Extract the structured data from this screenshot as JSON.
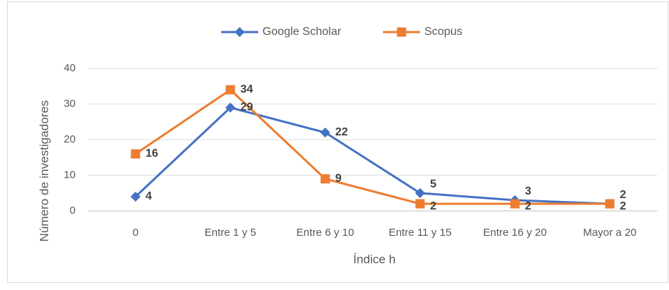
{
  "chart_data": {
    "type": "line",
    "categories": [
      "0",
      "Entre 1 y 5",
      "Entre 6 y 10",
      "Entre 11 y 15",
      "Entre 16 y 20",
      "Mayor a 20"
    ],
    "series": [
      {
        "name": "Google Scholar",
        "color": "#4472c4",
        "marker": "diamond",
        "values": [
          4,
          29,
          22,
          5,
          3,
          2
        ]
      },
      {
        "name": "Scopus",
        "color": "#ed7d31",
        "marker": "square",
        "values": [
          16,
          34,
          9,
          2,
          2,
          2
        ]
      }
    ],
    "x_label": "Índice h",
    "y_label": "Número de investigadores",
    "ylim": [
      0,
      40
    ],
    "yticks": [
      0,
      10,
      20,
      30,
      40
    ],
    "grid": true,
    "legend": "top"
  }
}
